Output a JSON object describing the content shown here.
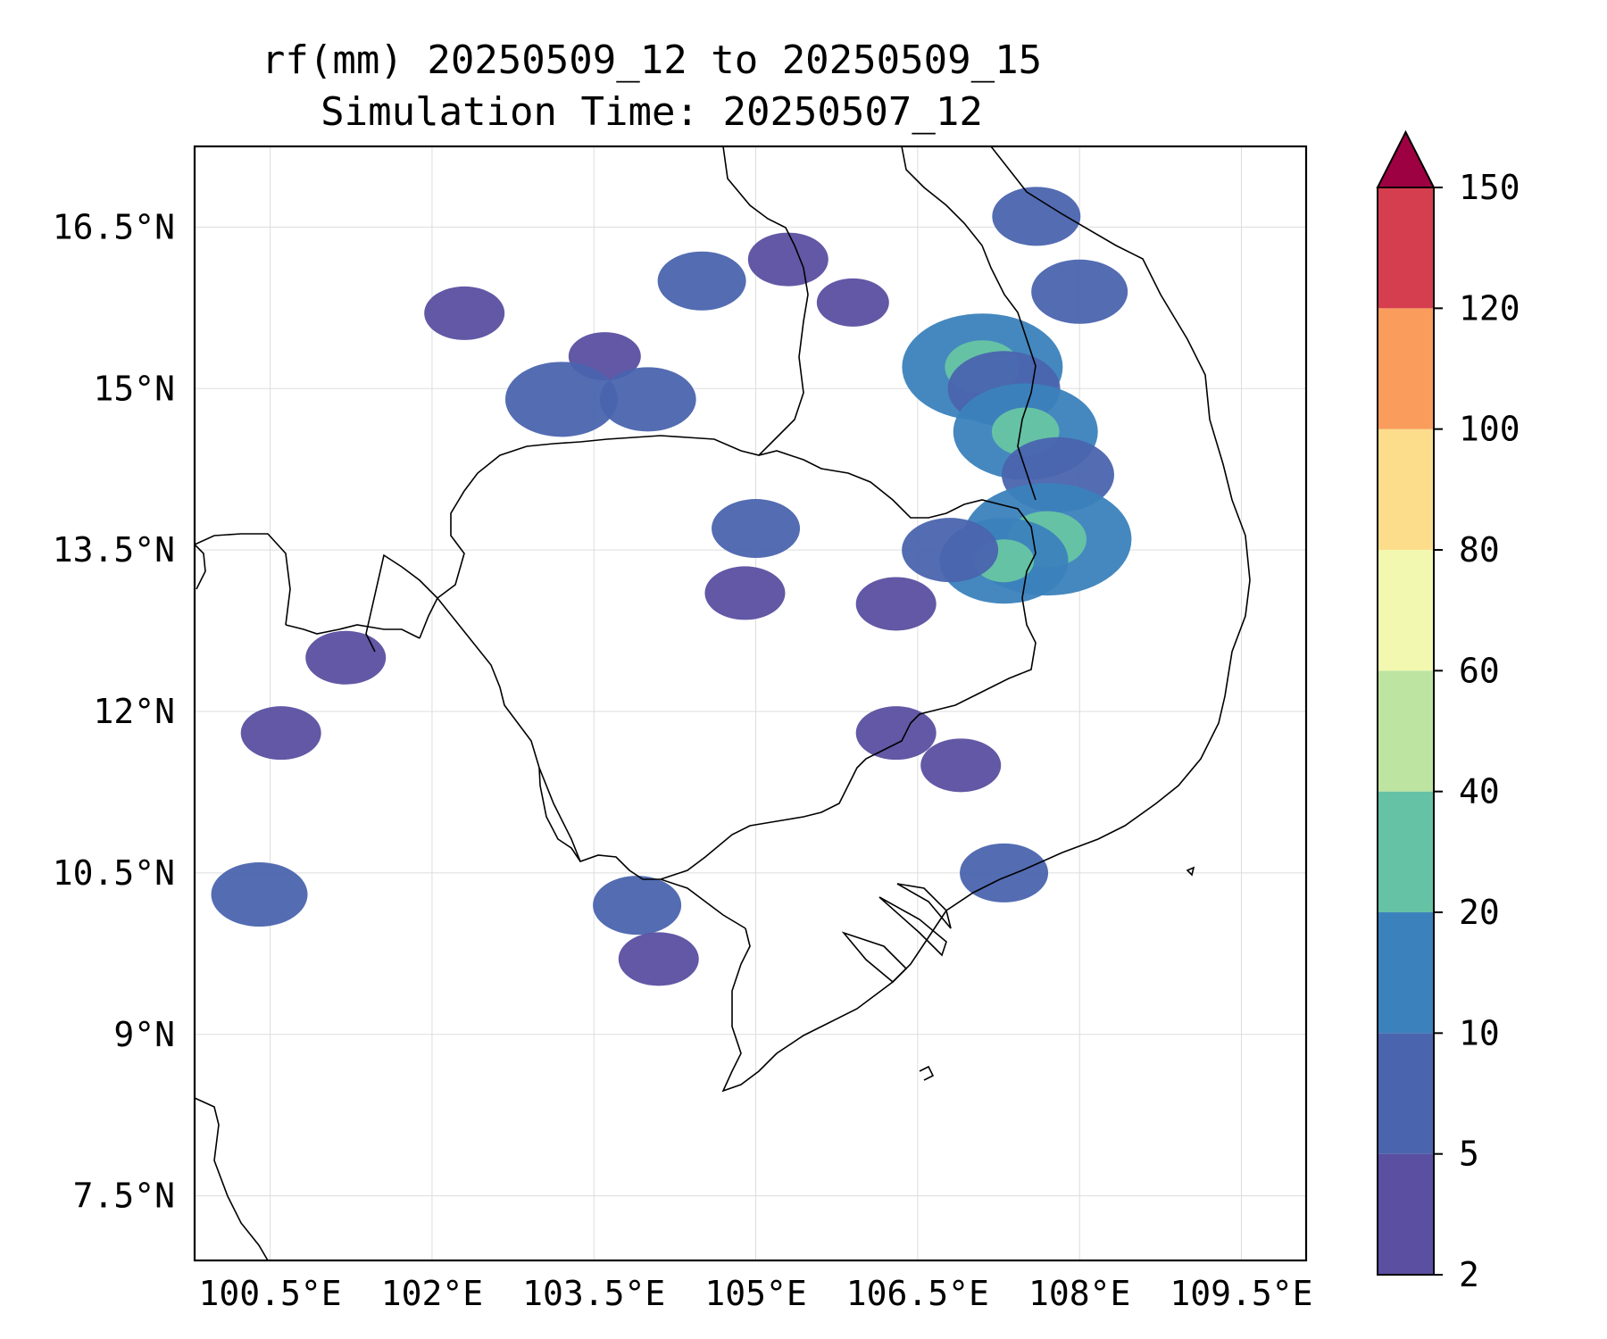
{
  "title": "rf(mm) 20250509_12 to 20250509_15",
  "subtitle": "Simulation Time: 20250507_12",
  "map": {
    "lon_range": [
      99.8,
      110.1
    ],
    "lat_range": [
      6.9,
      17.25
    ],
    "x_ticks": [
      {
        "value": 100.5,
        "label": "100.5°E"
      },
      {
        "value": 102.0,
        "label": "102°E"
      },
      {
        "value": 103.5,
        "label": "103.5°E"
      },
      {
        "value": 105.0,
        "label": "105°E"
      },
      {
        "value": 106.5,
        "label": "106.5°E"
      },
      {
        "value": 108.0,
        "label": "108°E"
      },
      {
        "value": 109.5,
        "label": "109.5°E"
      }
    ],
    "y_ticks": [
      {
        "value": 16.5,
        "label": "16.5°N"
      },
      {
        "value": 15.0,
        "label": "15°N"
      },
      {
        "value": 13.5,
        "label": "13.5°N"
      },
      {
        "value": 12.0,
        "label": "12°N"
      },
      {
        "value": 10.5,
        "label": "10.5°N"
      },
      {
        "value": 9.0,
        "label": "9°N"
      },
      {
        "value": 7.5,
        "label": "7.5°N"
      }
    ],
    "grid": true,
    "colors": {
      "coastline": "#000000",
      "grid": "#dddddd",
      "background": "#ffffff"
    }
  },
  "colorbar": {
    "levels": [
      2,
      5,
      10,
      20,
      40,
      60,
      80,
      100,
      120,
      150
    ],
    "labels": [
      "2",
      "5",
      "10",
      "20",
      "40",
      "60",
      "80",
      "100",
      "120",
      "150"
    ],
    "colors": [
      "#5a4fa0",
      "#4a64ae",
      "#3b82bc",
      "#66c2a5",
      "#bde4a1",
      "#f2f8b0",
      "#fbdd8b",
      "#f99c5c",
      "#d53e4f"
    ],
    "extend_color": "#9e0142",
    "extend": "max"
  },
  "rain_cells": [
    {
      "lon": 103.6,
      "lat": 15.3,
      "val": 3
    },
    {
      "lon": 103.2,
      "lat": 14.9,
      "val": 8
    },
    {
      "lon": 104.0,
      "lat": 14.9,
      "val": 6
    },
    {
      "lon": 102.3,
      "lat": 15.7,
      "val": 4
    },
    {
      "lon": 104.5,
      "lat": 16.0,
      "val": 5
    },
    {
      "lon": 105.3,
      "lat": 16.2,
      "val": 4
    },
    {
      "lon": 105.9,
      "lat": 15.8,
      "val": 3
    },
    {
      "lon": 107.1,
      "lat": 15.2,
      "val": 14
    },
    {
      "lon": 107.3,
      "lat": 15.0,
      "val": 8
    },
    {
      "lon": 107.5,
      "lat": 14.6,
      "val": 12
    },
    {
      "lon": 107.8,
      "lat": 14.2,
      "val": 8
    },
    {
      "lon": 107.7,
      "lat": 13.6,
      "val": 15
    },
    {
      "lon": 107.3,
      "lat": 13.4,
      "val": 10
    },
    {
      "lon": 106.8,
      "lat": 13.5,
      "val": 6
    },
    {
      "lon": 105.0,
      "lat": 13.7,
      "val": 5
    },
    {
      "lon": 104.9,
      "lat": 13.1,
      "val": 4
    },
    {
      "lon": 106.3,
      "lat": 13.0,
      "val": 4
    },
    {
      "lon": 106.3,
      "lat": 11.8,
      "val": 4
    },
    {
      "lon": 106.9,
      "lat": 11.5,
      "val": 4
    },
    {
      "lon": 100.6,
      "lat": 11.8,
      "val": 4
    },
    {
      "lon": 100.4,
      "lat": 10.3,
      "val": 6
    },
    {
      "lon": 103.9,
      "lat": 10.2,
      "val": 5
    },
    {
      "lon": 104.1,
      "lat": 9.7,
      "val": 4
    },
    {
      "lon": 107.3,
      "lat": 10.5,
      "val": 5
    },
    {
      "lon": 101.2,
      "lat": 12.5,
      "val": 4
    },
    {
      "lon": 108.0,
      "lat": 15.9,
      "val": 6
    },
    {
      "lon": 107.6,
      "lat": 16.6,
      "val": 5
    }
  ]
}
